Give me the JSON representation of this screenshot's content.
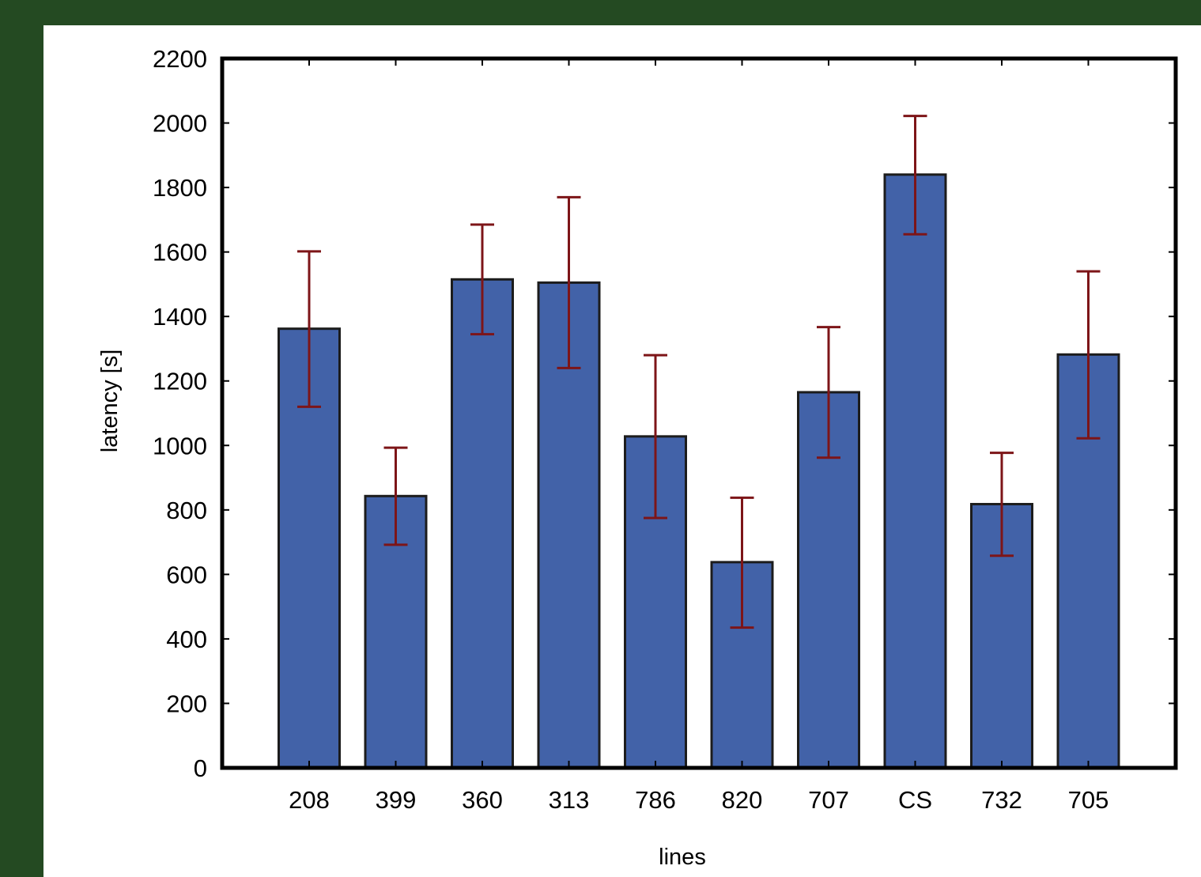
{
  "colors": {
    "background": "#244a22",
    "panel": "#ffffff",
    "bar_fill": "#4262a8",
    "bar_stroke": "#1c1c1c",
    "error_bar": "#7d1518",
    "axis": "#000000"
  },
  "chart_data": {
    "type": "bar",
    "title": "",
    "xlabel": "lines",
    "ylabel": "latency [s]",
    "ylim": [
      0,
      2200
    ],
    "yticks": [
      0,
      200,
      400,
      600,
      800,
      1000,
      1200,
      1400,
      1600,
      1800,
      2000,
      2200
    ],
    "categories": [
      "208",
      "399",
      "360",
      "313",
      "786",
      "820",
      "707",
      "CS",
      "732",
      "705"
    ],
    "values": [
      1362,
      843,
      1515,
      1505,
      1028,
      638,
      1165,
      1840,
      818,
      1282
    ],
    "error_low": [
      1120,
      692,
      1345,
      1240,
      775,
      435,
      962,
      1655,
      658,
      1022
    ],
    "error_high": [
      1602,
      993,
      1685,
      1770,
      1280,
      838,
      1367,
      2022,
      977,
      1540
    ],
    "grid": false,
    "legend": "none"
  }
}
